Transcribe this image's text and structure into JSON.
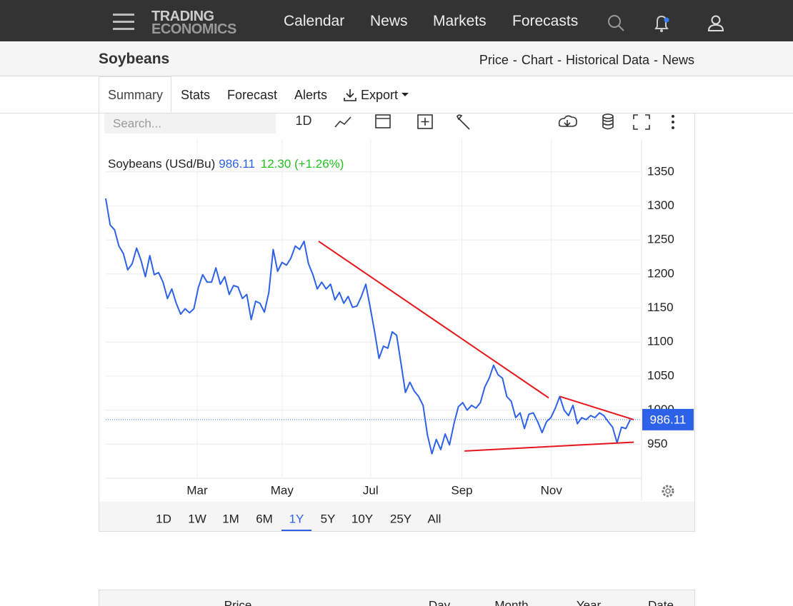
{
  "nav": {
    "logo_top": "TRADING",
    "logo_bottom": "ECONOMICS",
    "links": [
      "Calendar",
      "News",
      "Markets",
      "Forecasts"
    ]
  },
  "header": {
    "title": "Soybeans",
    "links": [
      "Price",
      "Chart",
      "Historical Data",
      "News"
    ],
    "separator": "-"
  },
  "tabs": [
    "Summary",
    "Stats",
    "Forecast",
    "Alerts",
    "Export"
  ],
  "toolbar": {
    "search_placeholder": "Search...",
    "interval": "1D"
  },
  "chart_data": {
    "type": "line",
    "change_label": "12.30 (+1.26%)",
    "change_color": "#22c11f",
    "x": [
      0,
      1,
      2,
      3,
      4,
      5,
      6,
      7,
      8,
      9,
      10,
      11,
      12,
      13,
      14,
      15,
      16,
      17,
      18,
      19,
      20,
      21,
      22,
      23,
      24,
      25,
      26,
      27,
      28,
      29,
      30,
      31,
      32,
      33,
      34,
      35,
      36,
      37,
      38,
      39,
      40,
      41,
      42,
      43,
      44,
      45,
      46,
      47,
      48,
      49,
      50,
      51,
      52,
      53,
      54,
      55,
      56,
      57,
      58,
      59,
      60,
      61,
      62,
      63,
      64,
      65,
      66,
      67,
      68,
      69,
      70,
      71,
      72,
      73,
      74,
      75,
      76,
      77,
      78,
      79,
      80,
      81,
      82,
      83,
      84,
      85,
      86,
      87,
      88,
      89,
      90,
      91,
      92,
      93,
      94,
      95,
      96,
      97,
      98,
      99,
      100,
      101,
      102,
      103,
      104,
      105,
      106,
      107,
      108,
      109,
      110,
      111,
      112,
      113,
      114,
      115,
      116,
      117,
      118,
      119
    ],
    "series": [
      {
        "name": "Soybeans (USd/Bu)",
        "color": "#2d62e8",
        "values": [
          1311,
          1272,
          1265,
          1241,
          1230,
          1206,
          1215,
          1238,
          1220,
          1196,
          1227,
          1199,
          1202,
          1188,
          1164,
          1178,
          1157,
          1141,
          1149,
          1143,
          1149,
          1180,
          1199,
          1188,
          1188,
          1209,
          1185,
          1196,
          1170,
          1183,
          1181,
          1164,
          1170,
          1133,
          1160,
          1157,
          1144,
          1173,
          1236,
          1204,
          1217,
          1213,
          1223,
          1241,
          1236,
          1248,
          1215,
          1199,
          1178,
          1188,
          1178,
          1185,
          1162,
          1173,
          1157,
          1167,
          1151,
          1153,
          1167,
          1185,
          1151,
          1115,
          1076,
          1094,
          1091,
          1115,
          1110,
          1068,
          1026,
          1041,
          1028,
          1020,
          1007,
          963,
          936,
          957,
          942,
          965,
          949,
          980,
          1005,
          1011,
          1000,
          1007,
          1003,
          1011,
          1034,
          1047,
          1066,
          1052,
          1047,
          1020,
          1013,
          989,
          996,
          973,
          994,
          996,
          983,
          967,
          983,
          989,
          1003,
          1020,
          1000,
          992,
          1007,
          980,
          989,
          986,
          992,
          989,
          996,
          992,
          983,
          975,
          952,
          975,
          973,
          986.11
        ]
      }
    ],
    "xlim": [
      0,
      121.4
    ],
    "xticks": [
      {
        "value": 20.75,
        "label": "Mar"
      },
      {
        "value": 40,
        "label": "May"
      },
      {
        "value": 60.1,
        "label": "Jul"
      },
      {
        "value": 80.8,
        "label": "Sep"
      },
      {
        "value": 101.1,
        "label": "Nov"
      }
    ],
    "ylim": [
      900,
      1398
    ],
    "yticks": [
      950,
      1000,
      1050,
      1100,
      1150,
      1200,
      1250,
      1300,
      1350
    ],
    "grid": true,
    "trendline_color": "#e8151b",
    "trendlines": [
      {
        "x": [
          48.3,
          100.5
        ],
        "y": [
          1248,
          1018
        ]
      },
      {
        "x": [
          103.1,
          119.8
        ],
        "y": [
          1020,
          986
        ]
      },
      {
        "x": [
          81.4,
          119.8
        ],
        "y": [
          940,
          953
        ]
      }
    ]
  },
  "ranges": [
    "1D",
    "1W",
    "1M",
    "6M",
    "1Y",
    "5Y",
    "10Y",
    "25Y",
    "All"
  ],
  "active_range": 4,
  "table": {
    "headers": [
      "Price",
      "Day",
      "Month",
      "Year",
      "Date"
    ]
  }
}
